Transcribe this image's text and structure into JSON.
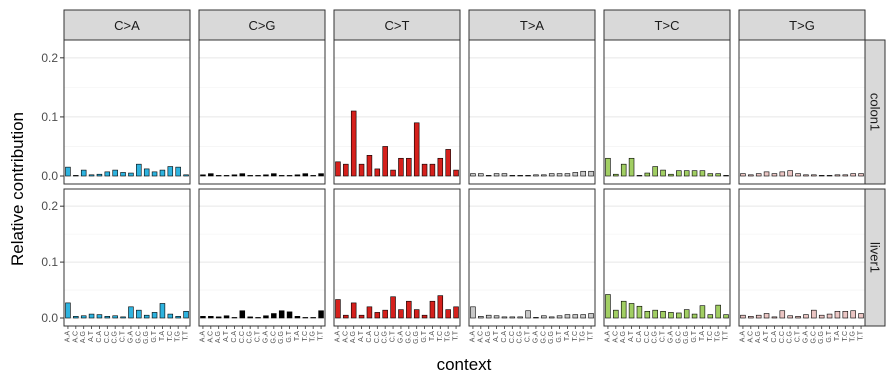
{
  "chart_data": {
    "type": "bar",
    "ylabel": "Relative contribution",
    "xlabel": "context",
    "ylim": [
      0,
      0.22
    ],
    "yticks": [
      0.0,
      0.1,
      0.2
    ],
    "ytick_labels": [
      "0.0",
      "0.1",
      "0.2"
    ],
    "grid": true,
    "columns": [
      "C>A",
      "C>G",
      "C>T",
      "T>A",
      "T>C",
      "T>G"
    ],
    "rows": [
      "colon1",
      "liver1"
    ],
    "colors": {
      "C>A": "#2EB3DF",
      "C>G": "#000000",
      "C>T": "#D5201C",
      "T>A": "#C8C8C8",
      "T>C": "#A1CE63",
      "T>G": "#EBC6C4"
    },
    "contexts": [
      "A.A",
      "A.C",
      "A.G",
      "A.T",
      "C.A",
      "C.C",
      "C.G",
      "C.T",
      "G.A",
      "G.C",
      "G.G",
      "G.T",
      "T.A",
      "T.C",
      "T.G",
      "T.T"
    ],
    "panels": [
      {
        "sample": "colon1",
        "mutation": "C>A",
        "values": [
          0.015,
          0.001,
          0.01,
          0.002,
          0.003,
          0.007,
          0.01,
          0.006,
          0.005,
          0.02,
          0.012,
          0.007,
          0.01,
          0.016,
          0.015,
          0.002
        ]
      },
      {
        "sample": "colon1",
        "mutation": "C>G",
        "values": [
          0.002,
          0.004,
          0.001,
          0.001,
          0.002,
          0.004,
          0.001,
          0.001,
          0.002,
          0.004,
          0.001,
          0.001,
          0.002,
          0.004,
          0.001,
          0.004
        ]
      },
      {
        "sample": "colon1",
        "mutation": "C>T",
        "values": [
          0.024,
          0.02,
          0.11,
          0.02,
          0.035,
          0.012,
          0.05,
          0.01,
          0.03,
          0.03,
          0.09,
          0.02,
          0.02,
          0.03,
          0.045,
          0.01
        ]
      },
      {
        "sample": "colon1",
        "mutation": "T>A",
        "values": [
          0.004,
          0.004,
          0.001,
          0.004,
          0.004,
          0.001,
          0.001,
          0.001,
          0.002,
          0.002,
          0.004,
          0.004,
          0.004,
          0.006,
          0.008,
          0.008
        ]
      },
      {
        "sample": "colon1",
        "mutation": "T>C",
        "values": [
          0.03,
          0.003,
          0.02,
          0.03,
          0.001,
          0.005,
          0.016,
          0.01,
          0.003,
          0.009,
          0.009,
          0.009,
          0.009,
          0.004,
          0.004,
          0.001
        ]
      },
      {
        "sample": "colon1",
        "mutation": "T>G",
        "values": [
          0.004,
          0.002,
          0.004,
          0.007,
          0.004,
          0.007,
          0.009,
          0.004,
          0.002,
          0.002,
          0.001,
          0.001,
          0.002,
          0.002,
          0.004,
          0.004
        ]
      },
      {
        "sample": "liver1",
        "mutation": "C>A",
        "values": [
          0.027,
          0.003,
          0.004,
          0.007,
          0.006,
          0.003,
          0.004,
          0.002,
          0.02,
          0.014,
          0.005,
          0.01,
          0.026,
          0.007,
          0.003,
          0.012
        ]
      },
      {
        "sample": "liver1",
        "mutation": "C>G",
        "values": [
          0.003,
          0.003,
          0.002,
          0.004,
          0.001,
          0.013,
          0.002,
          0.001,
          0.004,
          0.008,
          0.013,
          0.011,
          0.003,
          0.001,
          0.001,
          0.013
        ]
      },
      {
        "sample": "liver1",
        "mutation": "C>T",
        "values": [
          0.033,
          0.005,
          0.027,
          0.005,
          0.02,
          0.01,
          0.014,
          0.038,
          0.015,
          0.03,
          0.015,
          0.005,
          0.03,
          0.04,
          0.015,
          0.02
        ]
      },
      {
        "sample": "liver1",
        "mutation": "T>A",
        "values": [
          0.02,
          0.003,
          0.005,
          0.004,
          0.002,
          0.002,
          0.002,
          0.013,
          0.001,
          0.004,
          0.002,
          0.004,
          0.006,
          0.006,
          0.006,
          0.008
        ]
      },
      {
        "sample": "liver1",
        "mutation": "T>C",
        "values": [
          0.042,
          0.014,
          0.03,
          0.026,
          0.021,
          0.012,
          0.014,
          0.012,
          0.01,
          0.009,
          0.015,
          0.007,
          0.022,
          0.006,
          0.023,
          0.006
        ]
      },
      {
        "sample": "liver1",
        "mutation": "T>G",
        "values": [
          0.005,
          0.003,
          0.005,
          0.008,
          0.002,
          0.013,
          0.004,
          0.003,
          0.006,
          0.014,
          0.005,
          0.007,
          0.012,
          0.012,
          0.013,
          0.008
        ]
      }
    ]
  }
}
